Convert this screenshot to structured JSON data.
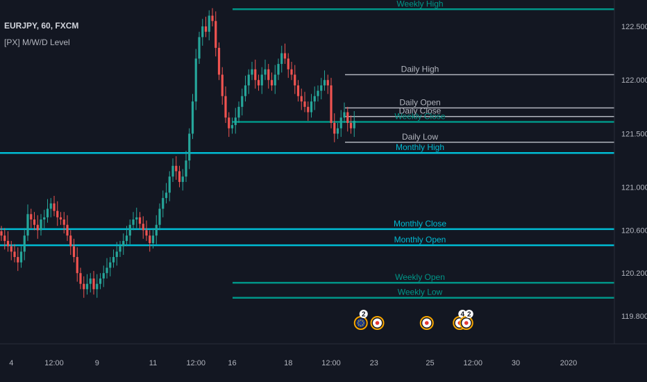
{
  "header": {
    "symbol": "EURJPY, 60, FXCM",
    "indicator": "[PX] M/W/D Level"
  },
  "colors": {
    "background": "#131722",
    "up": "#26a69a",
    "down": "#ef5350",
    "monthly": "#00bcd4",
    "weekly": "#009688",
    "daily": "#b2b5be",
    "event_ring": "#f7a600"
  },
  "chart_data": {
    "type": "candlestick",
    "ylim": [
      119.6,
      122.75
    ],
    "y_ticks": [
      {
        "label": "122.500",
        "value": 122.5
      },
      {
        "label": "122.000",
        "value": 122.0
      },
      {
        "label": "121.500",
        "value": 121.5
      },
      {
        "label": "121.000",
        "value": 121.0
      },
      {
        "label": "120.600",
        "value": 120.6
      },
      {
        "label": "120.200",
        "value": 120.2
      },
      {
        "label": "119.800",
        "value": 119.8
      }
    ],
    "x_ticks": [
      {
        "label": "4",
        "index": 3
      },
      {
        "label": "12:00",
        "index": 16
      },
      {
        "label": "9",
        "index": 29
      },
      {
        "label": "11",
        "index": 46
      },
      {
        "label": "12:00",
        "index": 59
      },
      {
        "label": "16",
        "index": 70
      },
      {
        "label": "18",
        "index": 87
      },
      {
        "label": "12:00",
        "index": 100
      },
      {
        "label": "23",
        "index": 113
      },
      {
        "label": "25",
        "index": 130
      },
      {
        "label": "12:00",
        "index": 143
      },
      {
        "label": "30",
        "index": 156
      },
      {
        "label": "2020",
        "index": 172
      }
    ],
    "closes": [
      120.55,
      120.5,
      120.45,
      120.4,
      120.35,
      120.3,
      120.4,
      120.55,
      120.75,
      120.7,
      120.65,
      120.6,
      120.7,
      120.72,
      120.8,
      120.85,
      120.78,
      120.72,
      120.7,
      120.65,
      120.55,
      120.45,
      120.35,
      120.2,
      120.1,
      120.05,
      120.1,
      120.15,
      120.05,
      120.1,
      120.15,
      120.2,
      120.25,
      120.3,
      120.35,
      120.4,
      120.45,
      120.5,
      120.55,
      120.65,
      120.7,
      120.72,
      120.66,
      120.6,
      120.55,
      120.48,
      120.55,
      120.65,
      120.8,
      120.9,
      120.95,
      121.1,
      121.2,
      121.15,
      121.05,
      121.1,
      121.25,
      121.5,
      121.8,
      122.2,
      122.4,
      122.5,
      122.45,
      122.6,
      122.55,
      122.3,
      122.05,
      121.85,
      121.65,
      121.55,
      121.58,
      121.65,
      121.75,
      121.85,
      121.95,
      122.05,
      122.1,
      122.0,
      121.95,
      122.05,
      122.1,
      122.0,
      121.95,
      122.05,
      122.15,
      122.25,
      122.2,
      122.1,
      122.05,
      121.95,
      121.85,
      121.8,
      121.75,
      121.7,
      121.8,
      121.85,
      121.9,
      121.95,
      122.0,
      121.95,
      121.6,
      121.5,
      121.55,
      121.65,
      121.7,
      121.6,
      121.55,
      121.62
    ],
    "levels": [
      {
        "label": "Weekly High",
        "value": 122.66,
        "type": "weekly"
      },
      {
        "label": "Daily High",
        "value": 122.05,
        "type": "daily"
      },
      {
        "label": "Daily Open",
        "value": 121.74,
        "type": "daily"
      },
      {
        "label": "Daily Close",
        "value": 121.66,
        "type": "daily"
      },
      {
        "label": "Weekly Close",
        "value": 121.61,
        "type": "weekly"
      },
      {
        "label": "Daily Low",
        "value": 121.42,
        "type": "daily"
      },
      {
        "label": "Monthly High",
        "value": 121.32,
        "type": "monthly"
      },
      {
        "label": "Monthly Close",
        "value": 120.61,
        "type": "monthly"
      },
      {
        "label": "Monthly Open",
        "value": 120.46,
        "type": "monthly"
      },
      {
        "label": "Weekly Open",
        "value": 120.11,
        "type": "weekly"
      },
      {
        "label": "Weekly Low",
        "value": 119.97,
        "type": "weekly"
      }
    ],
    "events": [
      {
        "index": 109,
        "kind": "eu",
        "count": "2"
      },
      {
        "index": 114,
        "kind": "jp",
        "count": ""
      },
      {
        "index": 129,
        "kind": "jp",
        "count": ""
      },
      {
        "index": 139,
        "kind": "jp",
        "count": "4"
      },
      {
        "index": 141,
        "kind": "jp",
        "count": "2"
      }
    ]
  }
}
